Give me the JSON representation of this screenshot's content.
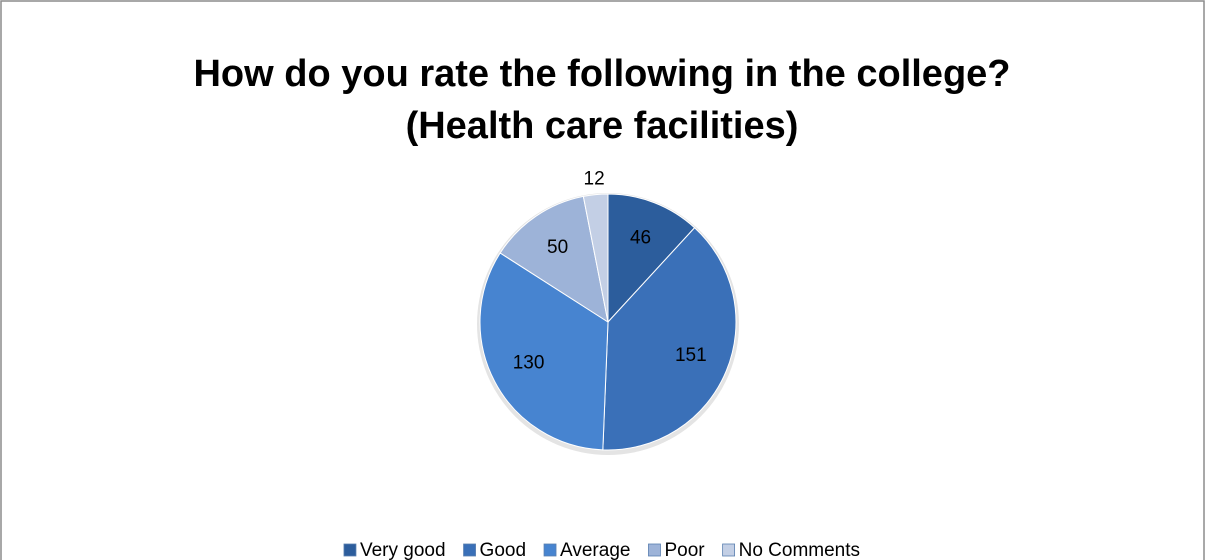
{
  "chart_data": {
    "type": "pie",
    "title": [
      "How do you rate the following in the college?",
      "(Health care facilities)"
    ],
    "categories": [
      "Very good",
      "Good",
      "Average",
      "Poor",
      "No Comments"
    ],
    "values": [
      46,
      151,
      130,
      50,
      12
    ],
    "colors": [
      "#2c5d9c",
      "#3a70b8",
      "#4784d0",
      "#9db3d8",
      "#c3cfe5"
    ],
    "legend": "bottom"
  }
}
